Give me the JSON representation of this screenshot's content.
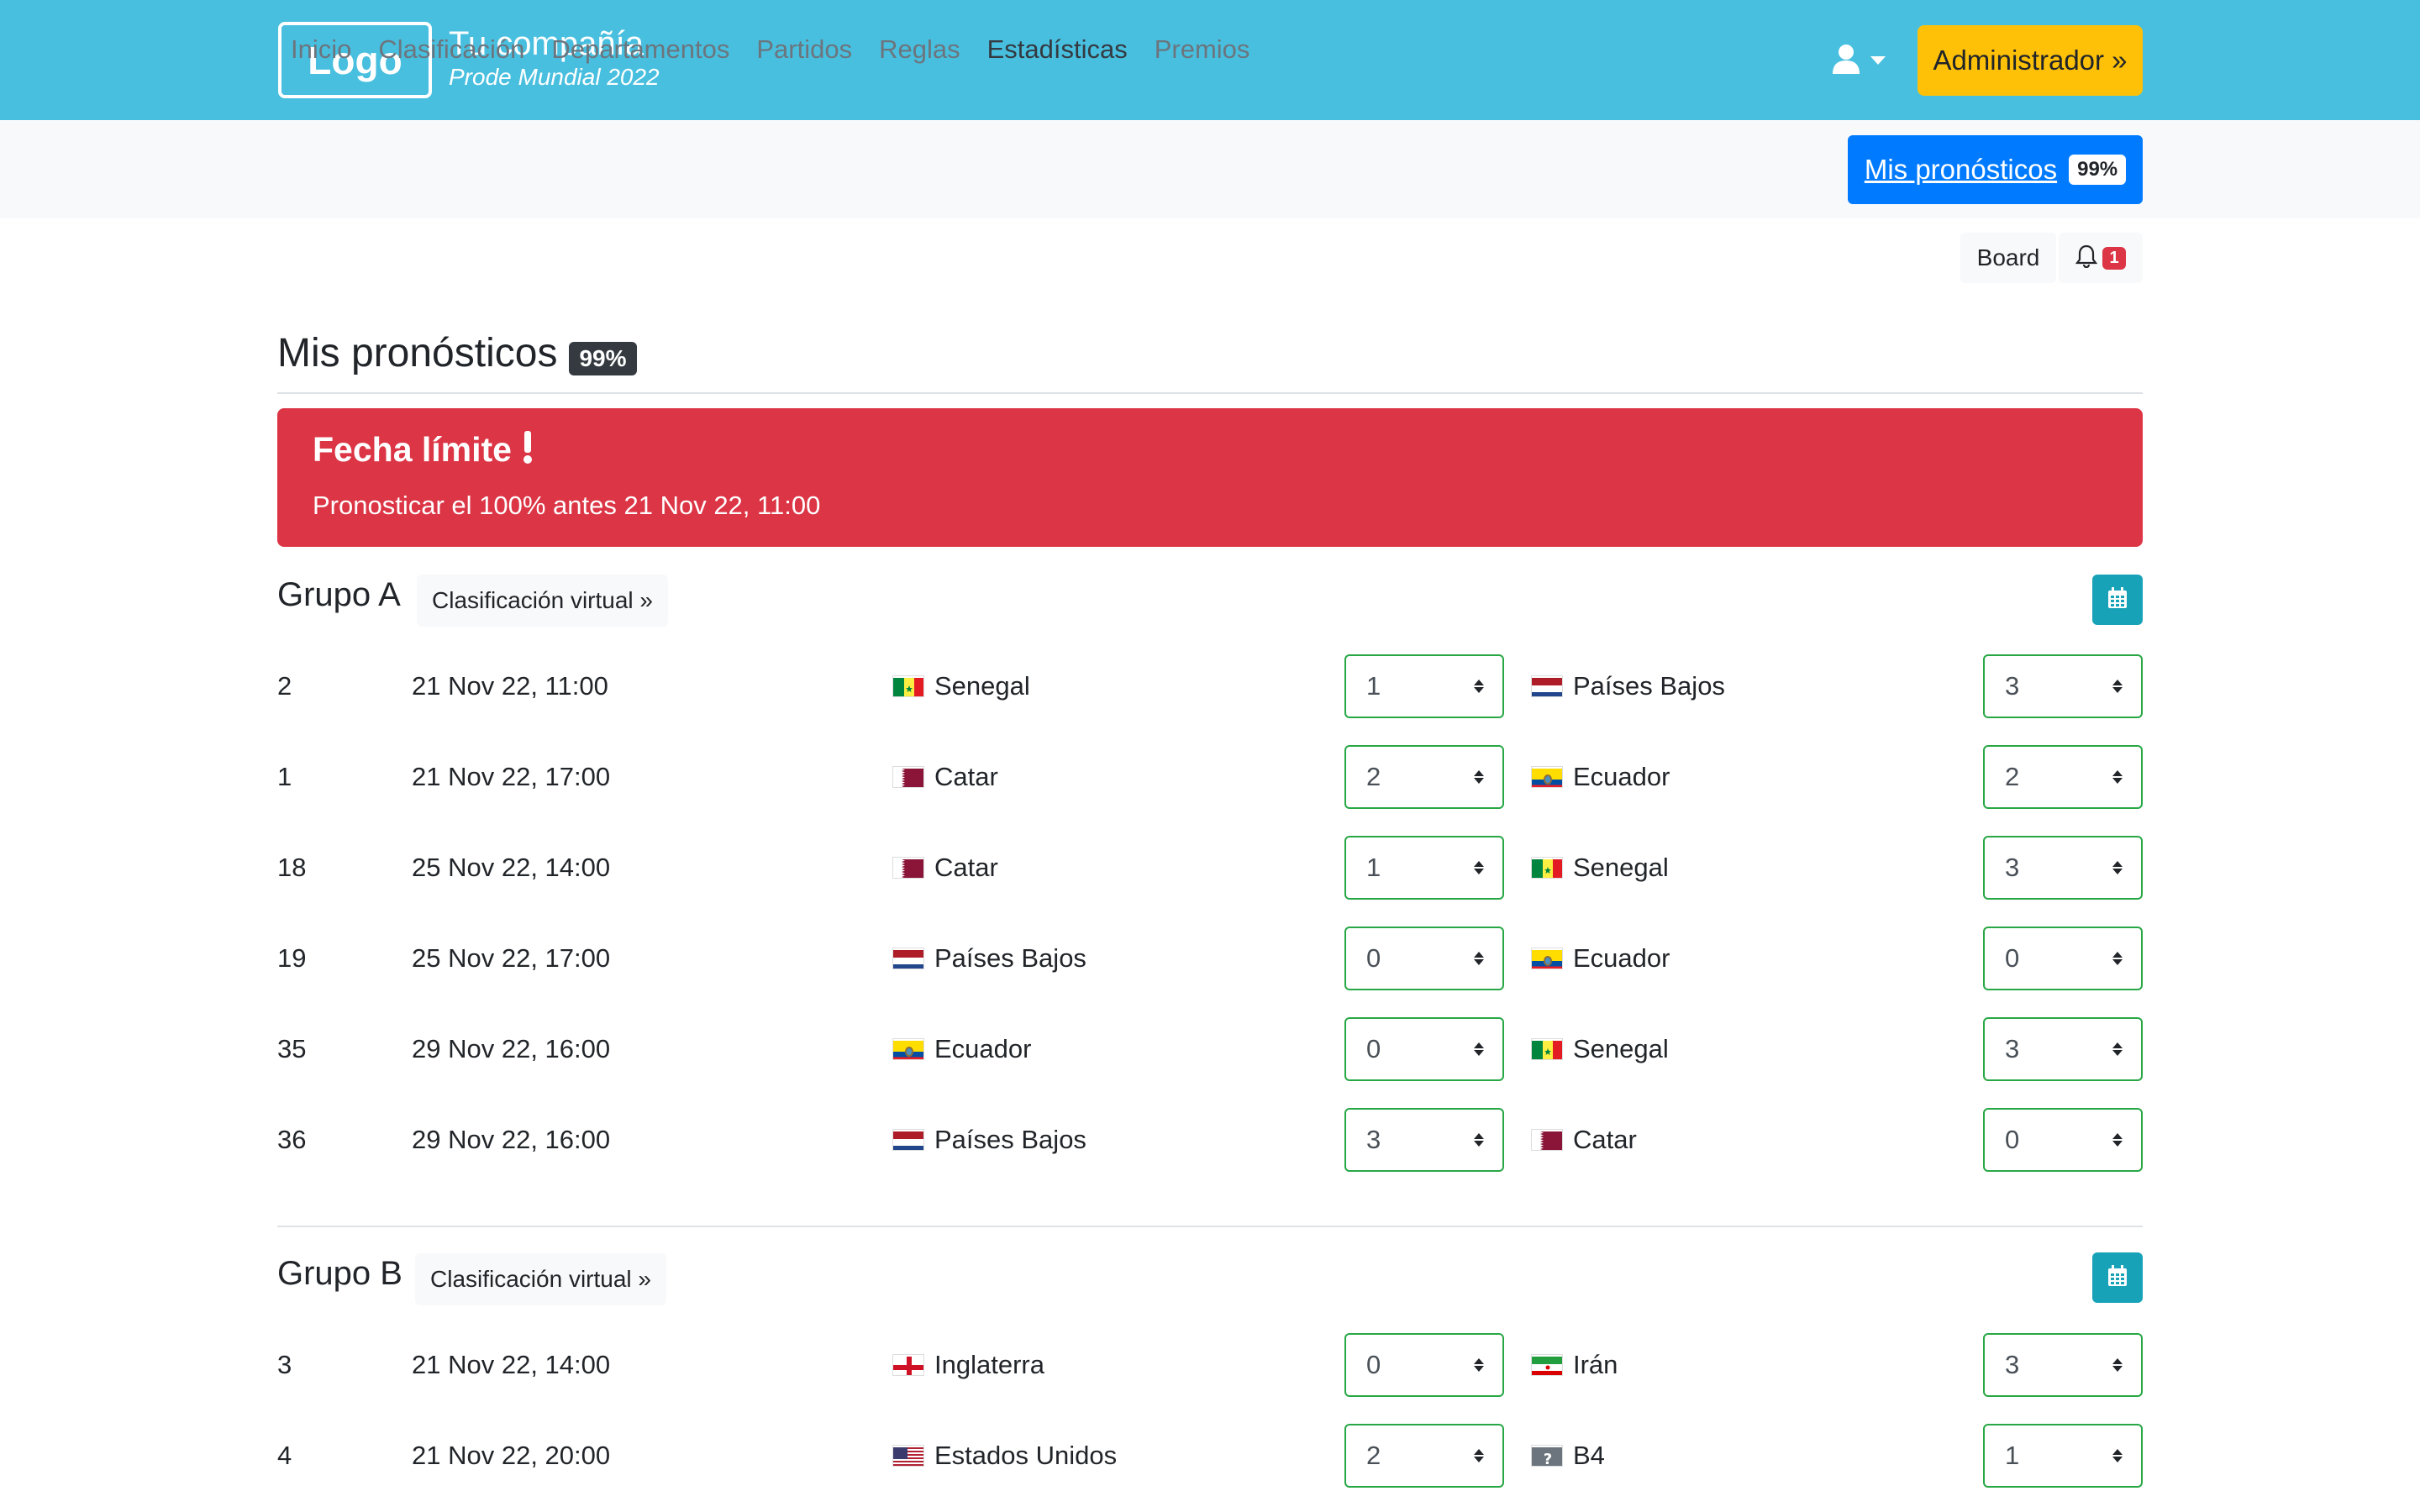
{
  "header": {
    "logo": "Logo",
    "company": "Tu compañía",
    "subtitle": "Prode Mundial 2022",
    "admin_button": "Administrador »"
  },
  "nav": {
    "items": [
      "Inicio",
      "Clasificación",
      "Departamentos",
      "Partidos",
      "Reglas",
      "Estadísticas",
      "Premios"
    ],
    "active": "Estadísticas",
    "mis_pronosticos": {
      "label": "Mis pronósticos",
      "badge": "99%"
    }
  },
  "toolbar": {
    "board": "Board",
    "notifications": "1"
  },
  "page": {
    "title": "Mis pronósticos",
    "badge": "99%"
  },
  "alert": {
    "title": "Fecha límite",
    "text": "Pronosticar el 100% antes 21 Nov 22, 11:00",
    "color": "#dc3545"
  },
  "groups": [
    {
      "name": "Grupo A",
      "virtual_button": "Clasificación virtual »",
      "matches": [
        {
          "num": "2",
          "date": "21 Nov 22, 11:00",
          "teamA": "Senegal",
          "flagA": "senegal",
          "scoreA": "1",
          "teamB": "Países Bajos",
          "flagB": "netherlands",
          "scoreB": "3"
        },
        {
          "num": "1",
          "date": "21 Nov 22, 17:00",
          "teamA": "Catar",
          "flagA": "qatar",
          "scoreA": "2",
          "teamB": "Ecuador",
          "flagB": "ecuador",
          "scoreB": "2"
        },
        {
          "num": "18",
          "date": "25 Nov 22, 14:00",
          "teamA": "Catar",
          "flagA": "qatar",
          "scoreA": "1",
          "teamB": "Senegal",
          "flagB": "senegal",
          "scoreB": "3"
        },
        {
          "num": "19",
          "date": "25 Nov 22, 17:00",
          "teamA": "Países Bajos",
          "flagA": "netherlands",
          "scoreA": "0",
          "teamB": "Ecuador",
          "flagB": "ecuador",
          "scoreB": "0"
        },
        {
          "num": "35",
          "date": "29 Nov 22, 16:00",
          "teamA": "Ecuador",
          "flagA": "ecuador",
          "scoreA": "0",
          "teamB": "Senegal",
          "flagB": "senegal",
          "scoreB": "3"
        },
        {
          "num": "36",
          "date": "29 Nov 22, 16:00",
          "teamA": "Países Bajos",
          "flagA": "netherlands",
          "scoreA": "3",
          "teamB": "Catar",
          "flagB": "qatar",
          "scoreB": "0"
        }
      ]
    },
    {
      "name": "Grupo B",
      "virtual_button": "Clasificación virtual »",
      "matches": [
        {
          "num": "3",
          "date": "21 Nov 22, 14:00",
          "teamA": "Inglaterra",
          "flagA": "england",
          "scoreA": "0",
          "teamB": "Irán",
          "flagB": "iran",
          "scoreB": "3"
        },
        {
          "num": "4",
          "date": "21 Nov 22, 20:00",
          "teamA": "Estados Unidos",
          "flagA": "usa",
          "scoreA": "2",
          "teamB": "B4",
          "flagB": "unknown",
          "scoreB": "1"
        }
      ]
    }
  ],
  "colors": {
    "topbar": "#48bfdf",
    "admin": "#ffc107",
    "primary": "#007bff",
    "select_border": "#28a745",
    "calendar": "#17a2b8"
  }
}
